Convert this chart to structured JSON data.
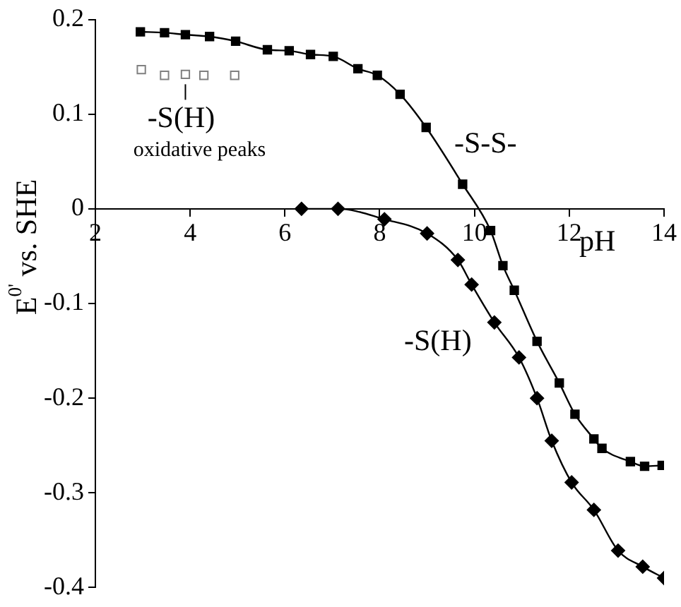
{
  "chart_data": {
    "type": "line",
    "xlabel": "pH",
    "ylabel": "E$^{0'}$ vs. SHE",
    "xlim": [
      2,
      14
    ],
    "ylim": [
      -0.4,
      0.2
    ],
    "xticks": [
      2,
      4,
      6,
      8,
      10,
      12,
      14
    ],
    "yticks": [
      -0.4,
      -0.3,
      -0.2,
      -0.1,
      0,
      0.1,
      0.2
    ],
    "grid": false,
    "legend": false,
    "annotations": [
      {
        "text": "-S(H)",
        "x": 3.9,
        "y": 0.142
      },
      "oxidative peaks"
    ],
    "series": [
      {
        "name": "-S-S-",
        "color": "#000000",
        "marker": "square",
        "x": [
          2.95,
          3.46,
          3.9,
          4.41,
          4.96,
          5.63,
          6.09,
          6.54,
          7.02,
          7.54,
          7.95,
          8.43,
          8.98,
          9.75,
          10.34,
          10.6,
          10.84,
          11.32,
          11.79,
          12.12,
          12.52,
          12.69,
          13.29,
          13.59,
          13.96
        ],
        "values": [
          0.187,
          0.186,
          0.184,
          0.182,
          0.177,
          0.168,
          0.167,
          0.163,
          0.161,
          0.148,
          0.141,
          0.121,
          0.086,
          0.026,
          -0.023,
          -0.06,
          -0.086,
          -0.14,
          -0.184,
          -0.217,
          -0.243,
          -0.253,
          -0.267,
          -0.272,
          -0.271
        ]
      },
      {
        "name": "-S(H)",
        "color": "#000000",
        "marker": "diamond",
        "x": [
          6.35,
          7.12,
          8.1,
          9.0,
          9.65,
          9.94,
          10.42,
          10.94,
          11.32,
          11.63,
          12.05,
          12.52,
          13.03,
          13.55,
          14.0
        ],
        "values": [
          0,
          0,
          -0.011,
          -0.026,
          -0.054,
          -0.08,
          -0.12,
          -0.157,
          -0.2,
          -0.245,
          -0.289,
          -0.318,
          -0.361,
          -0.378,
          -0.39
        ]
      },
      {
        "type": "scatter",
        "color": "#808080",
        "marker": "square",
        "x": [
          2.97,
          3.46,
          3.9,
          4.29,
          4.94
        ],
        "values": [
          0.147,
          0.141,
          0.142,
          0.141,
          0.141
        ]
      }
    ]
  }
}
